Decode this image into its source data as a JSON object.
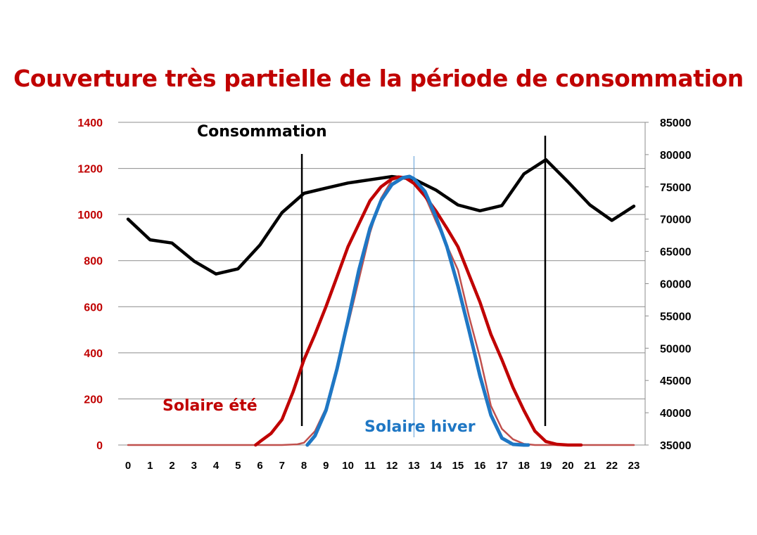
{
  "title": "Couverture très partielle de la période de consommation",
  "chart_data": {
    "type": "line",
    "title": "Couverture très partielle de la période de consommation",
    "x": [
      0,
      1,
      2,
      3,
      4,
      5,
      6,
      7,
      8,
      9,
      10,
      11,
      12,
      13,
      14,
      15,
      16,
      17,
      18,
      19,
      20,
      21,
      22,
      23
    ],
    "x_range": [
      0,
      23
    ],
    "y_left": {
      "range": [
        0,
        1400
      ],
      "ticks": [
        0,
        200,
        400,
        600,
        800,
        1000,
        1200,
        1400
      ]
    },
    "y_right": {
      "range": [
        35000,
        85000
      ],
      "ticks": [
        35000,
        40000,
        45000,
        50000,
        55000,
        60000,
        65000,
        70000,
        75000,
        80000,
        85000
      ]
    },
    "grid": true,
    "series": [
      {
        "name": "Consommation",
        "axis": "right",
        "color": "#000000",
        "points": [
          [
            0,
            70000
          ],
          [
            1,
            66800
          ],
          [
            2,
            66300
          ],
          [
            3,
            63500
          ],
          [
            4,
            61500
          ],
          [
            5,
            62300
          ],
          [
            6,
            66000
          ],
          [
            7,
            71000
          ],
          [
            8,
            74000
          ],
          [
            9,
            74800
          ],
          [
            10,
            75600
          ],
          [
            11,
            76100
          ],
          [
            12,
            76600
          ],
          [
            13,
            76200
          ],
          [
            14,
            74500
          ],
          [
            15,
            72200
          ],
          [
            16,
            71300
          ],
          [
            17,
            72100
          ],
          [
            18,
            77000
          ],
          [
            19,
            79200
          ],
          [
            20,
            75800
          ],
          [
            21,
            72200
          ],
          [
            22,
            69800
          ],
          [
            23,
            72000
          ]
        ]
      },
      {
        "name": "Solaire été",
        "axis": "left",
        "color": "#c00000",
        "points": [
          [
            5.8,
            0
          ],
          [
            6,
            15
          ],
          [
            6.5,
            50
          ],
          [
            7,
            110
          ],
          [
            7.5,
            230
          ],
          [
            8,
            370
          ],
          [
            8.5,
            480
          ],
          [
            9,
            600
          ],
          [
            9.5,
            730
          ],
          [
            10,
            860
          ],
          [
            10.5,
            960
          ],
          [
            11,
            1060
          ],
          [
            11.5,
            1120
          ],
          [
            12,
            1155
          ],
          [
            12.3,
            1163
          ],
          [
            12.6,
            1160
          ],
          [
            13,
            1135
          ],
          [
            13.5,
            1080
          ],
          [
            14,
            1015
          ],
          [
            14.5,
            940
          ],
          [
            15,
            860
          ],
          [
            15.5,
            740
          ],
          [
            16,
            620
          ],
          [
            16.5,
            480
          ],
          [
            17,
            370
          ],
          [
            17.5,
            250
          ],
          [
            18,
            150
          ],
          [
            18.5,
            60
          ],
          [
            19,
            15
          ],
          [
            19.5,
            3
          ],
          [
            20,
            0
          ],
          [
            20.6,
            0
          ]
        ]
      },
      {
        "name": "Solaire hiver",
        "axis": "left",
        "color": "#1f77c4",
        "points": [
          [
            8.15,
            0
          ],
          [
            8.5,
            40
          ],
          [
            9,
            150
          ],
          [
            9.5,
            330
          ],
          [
            10,
            540
          ],
          [
            10.5,
            760
          ],
          [
            11,
            940
          ],
          [
            11.5,
            1060
          ],
          [
            12,
            1130
          ],
          [
            12.5,
            1160
          ],
          [
            12.8,
            1165
          ],
          [
            13,
            1155
          ],
          [
            13.5,
            1100
          ],
          [
            14,
            990
          ],
          [
            14.5,
            860
          ],
          [
            15,
            690
          ],
          [
            15.5,
            500
          ],
          [
            16,
            300
          ],
          [
            16.5,
            130
          ],
          [
            17,
            30
          ],
          [
            17.5,
            3
          ],
          [
            18,
            0
          ],
          [
            18.2,
            0
          ]
        ]
      },
      {
        "name": "",
        "axis": "left",
        "color": "#c0504d",
        "points": [
          [
            0,
            0
          ],
          [
            5,
            0
          ],
          [
            6,
            0
          ],
          [
            7,
            0
          ],
          [
            7.7,
            3
          ],
          [
            8,
            10
          ],
          [
            8.5,
            60
          ],
          [
            9,
            160
          ],
          [
            10,
            520
          ],
          [
            11,
            920
          ],
          [
            11.5,
            1070
          ],
          [
            12,
            1150
          ],
          [
            12.5,
            1163
          ],
          [
            13,
            1150
          ],
          [
            13.5,
            1080
          ],
          [
            14,
            970
          ],
          [
            15,
            760
          ],
          [
            15.5,
            560
          ],
          [
            16,
            380
          ],
          [
            16.5,
            170
          ],
          [
            17,
            70
          ],
          [
            17.5,
            25
          ],
          [
            18,
            5
          ],
          [
            18.5,
            0
          ],
          [
            23,
            0
          ]
        ]
      }
    ],
    "vertical_lines": [
      8,
      19,
      13
    ],
    "annotations": [
      {
        "text": "Consommation",
        "color": "#000000"
      },
      {
        "text": "Solaire été",
        "color": "#c00000"
      },
      {
        "text": "Solaire hiver",
        "color": "#1f77c4"
      }
    ]
  }
}
